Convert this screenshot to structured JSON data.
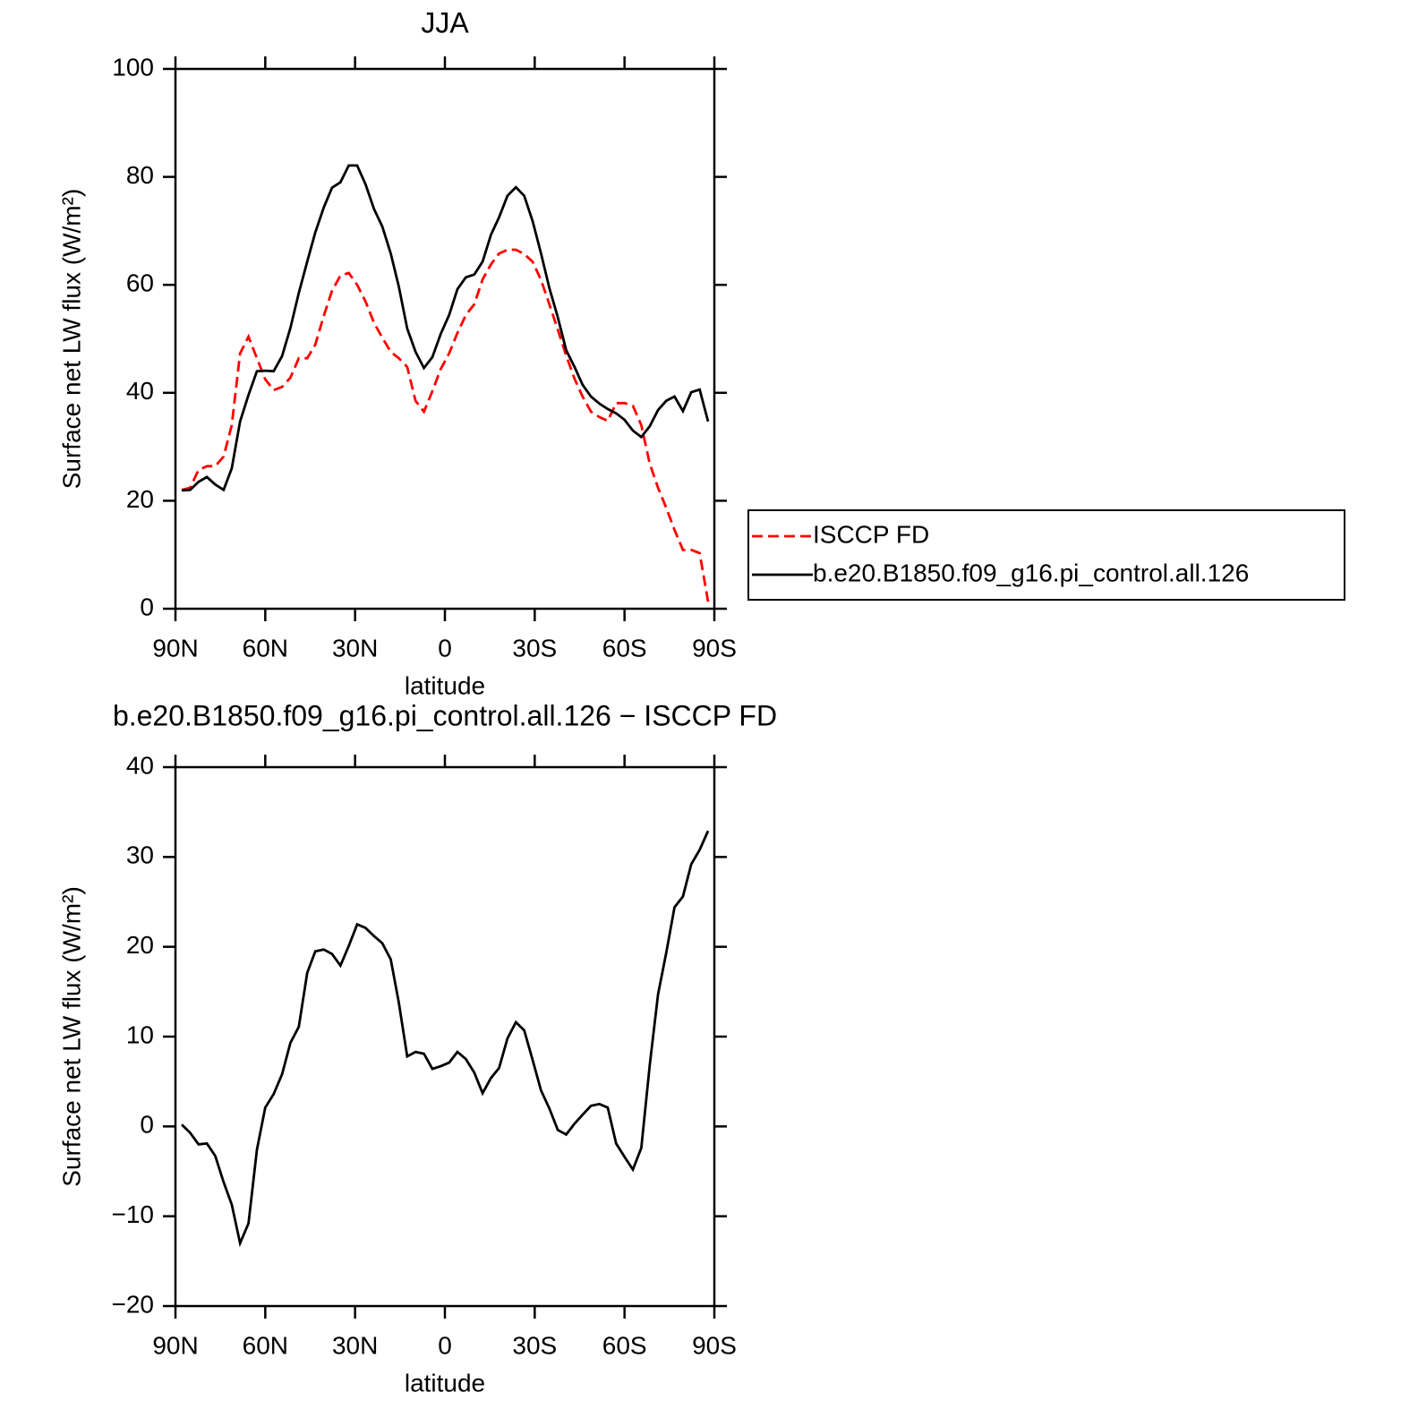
{
  "chart_data": [
    {
      "type": "line",
      "title": "JJA",
      "xlabel": "latitude",
      "ylabel": "Surface net LW flux (W/m²)",
      "x": [
        87.9,
        85.1,
        82.3,
        79.5,
        76.7,
        73.9,
        71.2,
        68.4,
        65.6,
        62.8,
        60.0,
        57.2,
        54.4,
        51.6,
        48.8,
        46.0,
        43.3,
        40.5,
        37.7,
        34.9,
        32.1,
        29.3,
        26.5,
        23.7,
        20.9,
        18.1,
        15.4,
        12.6,
        9.8,
        7.0,
        4.2,
        1.4,
        -1.4,
        -4.2,
        -7.0,
        -9.8,
        -12.6,
        -15.4,
        -18.1,
        -20.9,
        -23.7,
        -26.5,
        -29.3,
        -32.1,
        -34.9,
        -37.7,
        -40.5,
        -43.3,
        -46.0,
        -48.8,
        -51.6,
        -54.4,
        -57.2,
        -60.0,
        -62.8,
        -65.6,
        -68.4,
        -71.2,
        -73.9,
        -76.7,
        -79.5,
        -82.3,
        -85.1,
        -87.9
      ],
      "xlim": [
        90,
        -90
      ],
      "xticks": [
        {
          "value": 90,
          "label": "90N"
        },
        {
          "value": 60,
          "label": "60N"
        },
        {
          "value": 30,
          "label": "30N"
        },
        0,
        {
          "value": -30,
          "label": "30S"
        },
        {
          "value": -60,
          "label": "60S"
        },
        {
          "value": -90,
          "label": "90S"
        }
      ],
      "ylim": [
        0,
        100
      ],
      "yticks": [
        0,
        20,
        40,
        60,
        80,
        100
      ],
      "legend_loc": "right",
      "series": [
        {
          "name": "ISCCP FD",
          "color": "#ff0000",
          "dash": "dashed",
          "values": [
            22,
            22.4,
            25.7,
            26.4,
            26.4,
            28.2,
            34,
            47.3,
            50.4,
            46.4,
            42.5,
            40.5,
            41.1,
            42.8,
            46.4,
            46.4,
            48.9,
            54.2,
            58.9,
            61.7,
            62.2,
            60,
            56.9,
            53,
            50.2,
            47.6,
            46.4,
            44.8,
            38.5,
            36.5,
            40.3,
            44.4,
            47.3,
            51.1,
            54.4,
            56.4,
            61,
            63.8,
            65.8,
            66.5,
            66.5,
            65.7,
            64.3,
            60.9,
            56.4,
            51.7,
            46.9,
            42.6,
            39.3,
            36.5,
            35.5,
            34.8,
            38.1,
            38.1,
            37.6,
            34,
            26.9,
            22.4,
            18.7,
            14.6,
            10.9,
            10.9,
            10.3,
            1.3
          ]
        },
        {
          "name": "b.e20.B1850.f09_g16.pi_control.all.126",
          "color": "#000000",
          "dash": "solid",
          "values": [
            21.9,
            22,
            23.5,
            24.4,
            23,
            22,
            26,
            34.7,
            39.6,
            44,
            44.1,
            44,
            46.8,
            52,
            58.5,
            64.3,
            69.7,
            74.3,
            78,
            79,
            82.1,
            82.1,
            78.6,
            74.1,
            70.8,
            65.8,
            59.7,
            51.9,
            47.6,
            44.6,
            46.6,
            50.9,
            54.4,
            59.2,
            61.4,
            61.9,
            64.3,
            69.3,
            72.5,
            76.5,
            78.1,
            76.5,
            71.8,
            65.8,
            59.4,
            54,
            47.9,
            44.8,
            41.5,
            39.3,
            38,
            37,
            36.2,
            35,
            33,
            31.8,
            33.8,
            36.8,
            38.5,
            39.3,
            36.6,
            40.1,
            40.6,
            34.7
          ]
        }
      ]
    },
    {
      "type": "line",
      "title": "b.e20.B1850.f09_g16.pi_control.all.126 − ISCCP FD",
      "xlabel": "latitude",
      "ylabel": "Surface net LW flux (W/m²)",
      "x": [
        87.9,
        85.1,
        82.3,
        79.5,
        76.7,
        73.9,
        71.2,
        68.4,
        65.6,
        62.8,
        60.0,
        57.2,
        54.4,
        51.6,
        48.8,
        46.0,
        43.3,
        40.5,
        37.7,
        34.9,
        32.1,
        29.3,
        26.5,
        23.7,
        20.9,
        18.1,
        15.4,
        12.6,
        9.8,
        7.0,
        4.2,
        1.4,
        -1.4,
        -4.2,
        -7.0,
        -9.8,
        -12.6,
        -15.4,
        -18.1,
        -20.9,
        -23.7,
        -26.5,
        -29.3,
        -32.1,
        -34.9,
        -37.7,
        -40.5,
        -43.3,
        -46.0,
        -48.8,
        -51.6,
        -54.4,
        -57.2,
        -60.0,
        -62.8,
        -65.6,
        -68.4,
        -71.2,
        -73.9,
        -76.7,
        -79.5,
        -82.3,
        -85.1,
        -87.9
      ],
      "xlim": [
        90,
        -90
      ],
      "xticks": [
        {
          "value": 90,
          "label": "90N"
        },
        {
          "value": 60,
          "label": "60N"
        },
        {
          "value": 30,
          "label": "30N"
        },
        0,
        {
          "value": -30,
          "label": "30S"
        },
        {
          "value": -60,
          "label": "60S"
        },
        {
          "value": -90,
          "label": "90S"
        }
      ],
      "ylim": [
        -20,
        40
      ],
      "yticks": [
        {
          "value": -20,
          "label": "−20"
        },
        {
          "value": -10,
          "label": "−10"
        },
        0,
        10,
        20,
        30,
        40
      ],
      "series": [
        {
          "color": "#000000",
          "dash": "solid",
          "values": [
            0.2,
            -0.7,
            -2,
            -1.9,
            -3.3,
            -6.2,
            -8.7,
            -13,
            -10.8,
            -2.6,
            2.1,
            3.6,
            5.8,
            9.3,
            11.1,
            17.1,
            19.5,
            19.7,
            19.2,
            17.9,
            20.1,
            22.5,
            22.1,
            21.2,
            20.4,
            18.6,
            13.8,
            7.8,
            8.3,
            8.1,
            6.4,
            6.7,
            7.1,
            8.3,
            7.5,
            6,
            3.7,
            5.4,
            6.5,
            9.8,
            11.6,
            10.7,
            7.4,
            4,
            2,
            -0.4,
            -0.9,
            0.3,
            1.3,
            2.3,
            2.5,
            2.1,
            -1.9,
            -3.4,
            -4.8,
            -2.4,
            6.8,
            14.7,
            19.3,
            24.4,
            25.6,
            29.2,
            30.8,
            32.9
          ]
        }
      ]
    }
  ]
}
